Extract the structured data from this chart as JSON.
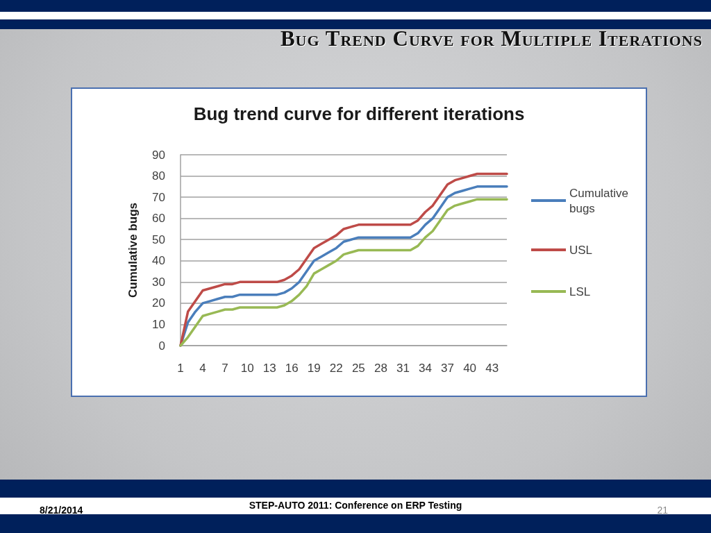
{
  "chart_data": {
    "type": "line",
    "title": "Bug Trend Curve for Multiple Iterations",
    "subtitle": "Bug trend curve for different iterations",
    "ylabel": "Cumulative bugs",
    "annotations": [
      "8/21/2014",
      "STEP-AUTO 2011: Conference on ERP Testing",
      "21"
    ],
    "categories": [
      "1",
      null,
      null,
      "4",
      null,
      null,
      "7",
      null,
      null,
      "10",
      null,
      null,
      "13",
      null,
      null,
      "16",
      null,
      null,
      "19",
      null,
      null,
      "22",
      null,
      null,
      "25",
      null,
      null,
      "28",
      null,
      null,
      "31",
      null,
      null,
      "34",
      null,
      null,
      "37",
      null,
      null,
      "40",
      null,
      null,
      "43",
      null,
      null
    ],
    "series": [
      {
        "name": "Cumulative bugs",
        "color": "#4a7ebb",
        "values": [
          0,
          11,
          16,
          20,
          21,
          22,
          23,
          23,
          24,
          24,
          24,
          24,
          24,
          24,
          25,
          27,
          30,
          35,
          40,
          42,
          44,
          46,
          49,
          50,
          51,
          51,
          51,
          51,
          51,
          51,
          51,
          51,
          53,
          57,
          60,
          65,
          70,
          72,
          73,
          74,
          75,
          75,
          75,
          75,
          75
        ]
      },
      {
        "name": "USL",
        "color": "#be4b48",
        "values": [
          0,
          16,
          21,
          26,
          27,
          28,
          29,
          29,
          30,
          30,
          30,
          30,
          30,
          30,
          31,
          33,
          36,
          41,
          46,
          48,
          50,
          52,
          55,
          56,
          57,
          57,
          57,
          57,
          57,
          57,
          57,
          57,
          59,
          63,
          66,
          71,
          76,
          78,
          79,
          80,
          81,
          81,
          81,
          81,
          81
        ]
      },
      {
        "name": "LSL",
        "color": "#98b954",
        "values": [
          0,
          4,
          9,
          14,
          15,
          16,
          17,
          17,
          18,
          18,
          18,
          18,
          18,
          18,
          19,
          21,
          24,
          28,
          34,
          36,
          38,
          40,
          43,
          44,
          45,
          45,
          45,
          45,
          45,
          45,
          45,
          45,
          47,
          51,
          54,
          59,
          64,
          66,
          67,
          68,
          69,
          69,
          69,
          69,
          69
        ]
      }
    ],
    "ylim": [
      0,
      90
    ],
    "yticks": [
      0,
      10,
      20,
      30,
      40,
      50,
      60,
      70,
      80,
      90
    ],
    "grid": "y",
    "legend": "right",
    "marker": "none",
    "line_style": "solid"
  }
}
